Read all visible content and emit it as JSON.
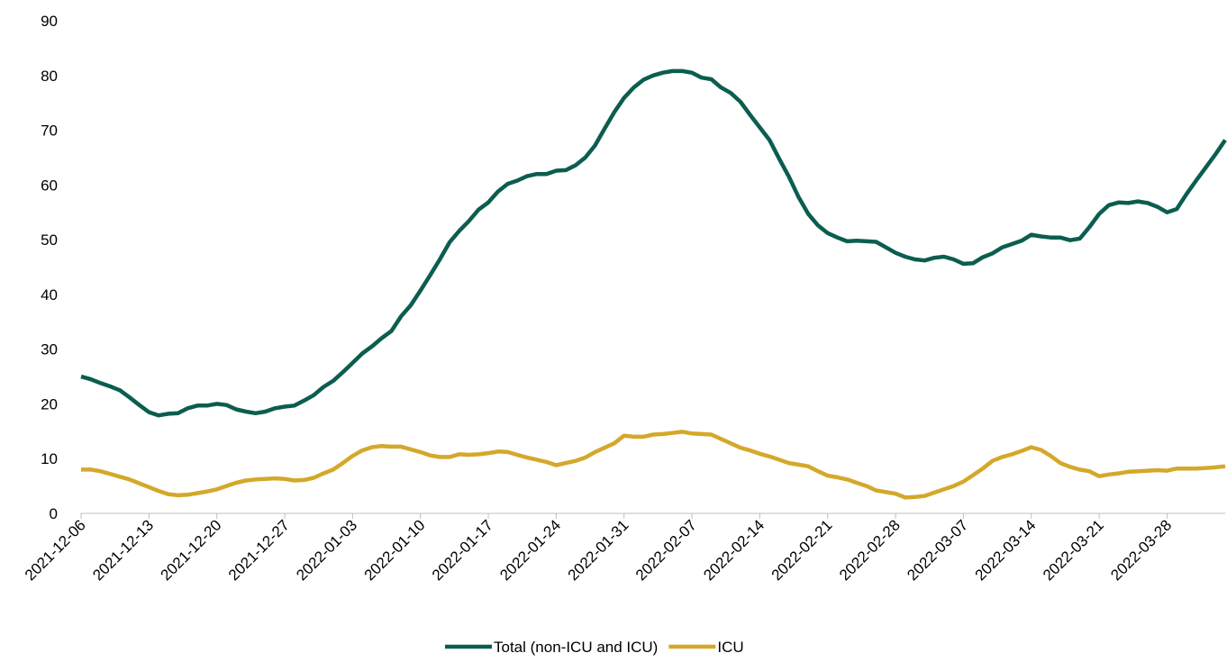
{
  "chart_data": {
    "type": "line",
    "x": [
      "2021-12-06",
      "2021-12-07",
      "2021-12-08",
      "2021-12-09",
      "2021-12-10",
      "2021-12-11",
      "2021-12-12",
      "2021-12-13",
      "2021-12-14",
      "2021-12-15",
      "2021-12-16",
      "2021-12-17",
      "2021-12-18",
      "2021-12-19",
      "2021-12-20",
      "2021-12-21",
      "2021-12-22",
      "2021-12-23",
      "2021-12-24",
      "2021-12-25",
      "2021-12-26",
      "2021-12-27",
      "2021-12-28",
      "2021-12-29",
      "2021-12-30",
      "2021-12-31",
      "2022-01-01",
      "2022-01-02",
      "2022-01-03",
      "2022-01-04",
      "2022-01-05",
      "2022-01-06",
      "2022-01-07",
      "2022-01-08",
      "2022-01-09",
      "2022-01-10",
      "2022-01-11",
      "2022-01-12",
      "2022-01-13",
      "2022-01-14",
      "2022-01-15",
      "2022-01-16",
      "2022-01-17",
      "2022-01-18",
      "2022-01-19",
      "2022-01-20",
      "2022-01-21",
      "2022-01-22",
      "2022-01-23",
      "2022-01-24",
      "2022-01-25",
      "2022-01-26",
      "2022-01-27",
      "2022-01-28",
      "2022-01-29",
      "2022-01-30",
      "2022-01-31",
      "2022-02-01",
      "2022-02-02",
      "2022-02-03",
      "2022-02-04",
      "2022-02-05",
      "2022-02-06",
      "2022-02-07",
      "2022-02-08",
      "2022-02-09",
      "2022-02-10",
      "2022-02-11",
      "2022-02-12",
      "2022-02-13",
      "2022-02-14",
      "2022-02-15",
      "2022-02-16",
      "2022-02-17",
      "2022-02-18",
      "2022-02-19",
      "2022-02-20",
      "2022-02-21",
      "2022-02-22",
      "2022-02-23",
      "2022-02-24",
      "2022-02-25",
      "2022-02-26",
      "2022-02-27",
      "2022-02-28",
      "2022-03-01",
      "2022-03-02",
      "2022-03-03",
      "2022-03-04",
      "2022-03-05",
      "2022-03-06",
      "2022-03-07",
      "2022-03-08",
      "2022-03-09",
      "2022-03-10",
      "2022-03-11",
      "2022-03-12",
      "2022-03-13",
      "2022-03-14",
      "2022-03-15",
      "2022-03-16",
      "2022-03-17",
      "2022-03-18",
      "2022-03-19",
      "2022-03-20",
      "2022-03-21",
      "2022-03-22",
      "2022-03-23",
      "2022-03-24",
      "2022-03-25",
      "2022-03-26",
      "2022-03-27",
      "2022-03-28",
      "2022-03-29",
      "2022-03-30",
      "2022-03-31",
      "2022-04-01",
      "2022-04-02",
      "2022-04-03"
    ],
    "series": [
      {
        "name": "Total (non-ICU and ICU)",
        "color": "#0b5e4f",
        "values": [
          25,
          24.5,
          23.8,
          23.2,
          22.5,
          21.2,
          19.8,
          18.5,
          17.9,
          18.2,
          18.3,
          19.2,
          19.7,
          19.7,
          20,
          19.8,
          19,
          18.6,
          18.3,
          18.6,
          19.2,
          19.5,
          19.7,
          20.6,
          21.6,
          23.1,
          24.2,
          25.8,
          27.5,
          29.2,
          30.5,
          32,
          33.3,
          36,
          38,
          40.7,
          43.5,
          46.4,
          49.5,
          51.6,
          53.4,
          55.5,
          56.8,
          58.8,
          60.2,
          60.8,
          61.6,
          62,
          62,
          62.6,
          62.7,
          63.6,
          65,
          67.2,
          70.3,
          73.3,
          75.9,
          77.8,
          79.2,
          80,
          80.5,
          80.8,
          80.8,
          80.5,
          79.6,
          79.3,
          77.8,
          76.8,
          75.2,
          72.8,
          70.5,
          68.2,
          64.8,
          61.5,
          57.8,
          54.7,
          52.6,
          51.2,
          50.4,
          49.7,
          49.8,
          49.7,
          49.6,
          48.6,
          47.6,
          46.9,
          46.4,
          46.2,
          46.7,
          46.9,
          46.4,
          45.6,
          45.7,
          46.8,
          47.5,
          48.6,
          49.2,
          49.8,
          50.9,
          50.6,
          50.4,
          50.4,
          49.9,
          50.2,
          52.3,
          54.7,
          56.3,
          56.8,
          56.7,
          57,
          56.7,
          56,
          55,
          55.6,
          58.3,
          60.8,
          63.2,
          65.6,
          68.2
        ]
      },
      {
        "name": "ICU",
        "color": "#d4a82a",
        "values": [
          8,
          8,
          7.7,
          7.2,
          6.7,
          6.2,
          5.5,
          4.8,
          4.1,
          3.5,
          3.3,
          3.4,
          3.7,
          4,
          4.4,
          5,
          5.6,
          6,
          6.2,
          6.3,
          6.4,
          6.3,
          6,
          6.1,
          6.5,
          7.3,
          8,
          9.2,
          10.5,
          11.5,
          12.1,
          12.3,
          12.2,
          12.2,
          11.7,
          11.2,
          10.6,
          10.3,
          10.3,
          10.8,
          10.7,
          10.8,
          11,
          11.3,
          11.2,
          10.7,
          10.2,
          9.8,
          9.4,
          8.8,
          9.2,
          9.6,
          10.2,
          11.2,
          12,
          12.8,
          14.2,
          14,
          14,
          14.4,
          14.5,
          14.7,
          14.9,
          14.6,
          14.5,
          14.4,
          13.6,
          12.8,
          12,
          11.5,
          10.9,
          10.4,
          9.8,
          9.2,
          8.9,
          8.6,
          7.7,
          6.9,
          6.6,
          6.2,
          5.6,
          5,
          4.2,
          3.9,
          3.6,
          2.9,
          3,
          3.2,
          3.8,
          4.4,
          5,
          5.8,
          7,
          8.2,
          9.6,
          10.3,
          10.8,
          11.4,
          12.1,
          11.6,
          10.5,
          9.2,
          8.5,
          8,
          7.7,
          6.8,
          7.1,
          7.3,
          7.6,
          7.7,
          7.8,
          7.9,
          7.8,
          8.2,
          8.2,
          8.2,
          8.3,
          8.4,
          8.6
        ]
      }
    ],
    "xlim": [
      "2021-12-06",
      "2022-04-03"
    ],
    "xticks": [
      "2021-12-06",
      "2021-12-13",
      "2021-12-20",
      "2021-12-27",
      "2022-01-03",
      "2022-01-10",
      "2022-01-17",
      "2022-01-24",
      "2022-01-31",
      "2022-02-07",
      "2022-02-14",
      "2022-02-21",
      "2022-02-28",
      "2022-03-07",
      "2022-03-14",
      "2022-03-21",
      "2022-03-28"
    ],
    "ylim": [
      0,
      90
    ],
    "yticks": [
      0,
      10,
      20,
      30,
      40,
      50,
      60,
      70,
      80,
      90
    ],
    "legend": "bottom"
  }
}
